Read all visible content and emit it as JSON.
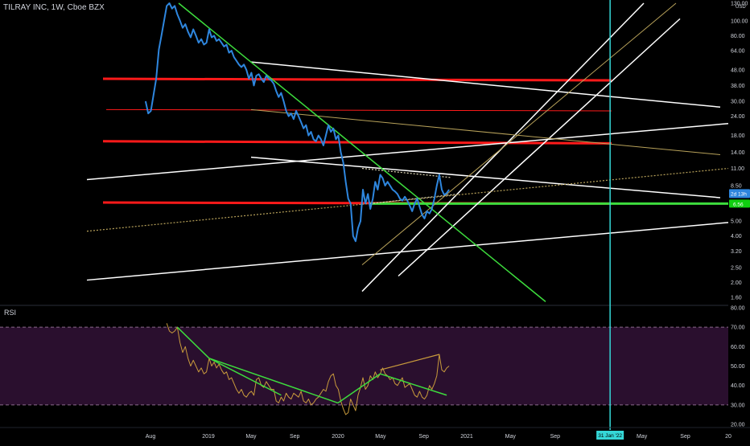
{
  "header": {
    "symbol_title": "TILRAY INC, 1W, Cboe BZX"
  },
  "rsi_panel": {
    "title": "RSI"
  },
  "colors": {
    "background": "#000000",
    "price_line": "#2e86de",
    "rsi_line": "#c89a3c",
    "rsi_band": "#2a0f2e",
    "red_level": "#ff1a1a",
    "green_trend": "#3ddc3d",
    "white_trend": "#ffffff",
    "dotted_trend": "#b8a25a",
    "cyan_marker": "#35d7d7",
    "current_price_badge": "#2e86de",
    "green_level_badge": "#10d010",
    "axis_text": "#d1d4dc",
    "dashed_level": "#8a6a8a"
  },
  "chart_data": [
    {
      "type": "line",
      "name": "price",
      "scale": "log",
      "y_ticks": [
        "130.00",
        "100.00",
        "80.00",
        "64.00",
        "48.00",
        "38.00",
        "30.00",
        "24.00",
        "18.00",
        "14.00",
        "11.00",
        "8.50",
        "5.00",
        "4.00",
        "3.20",
        "2.50",
        "2.00",
        "1.60"
      ],
      "y_unit": "USD",
      "ylim": [
        1.5,
        130
      ],
      "x_ticks": [
        "Aug",
        "2019",
        "May",
        "Sep",
        "2020",
        "May",
        "Sep",
        "2021",
        "May",
        "Sep",
        "31 Jan '22",
        "May",
        "Sep",
        "20"
      ],
      "price_badge": "2d 13h",
      "green_level_badge": "6.56",
      "series": [
        {
          "name": "price",
          "values": [
            [
              "2018-07-19",
              30
            ],
            [
              "2018-07-26",
              25
            ],
            [
              "2018-08-02",
              26
            ],
            [
              "2018-08-09",
              33
            ],
            [
              "2018-08-16",
              42
            ],
            [
              "2018-08-23",
              65
            ],
            [
              "2018-08-30",
              80
            ],
            [
              "2018-09-06",
              100
            ],
            [
              "2018-09-13",
              125
            ],
            [
              "2018-09-20",
              130
            ],
            [
              "2018-09-27",
              120
            ],
            [
              "2018-10-04",
              125
            ],
            [
              "2018-10-11",
              110
            ],
            [
              "2018-10-18",
              100
            ],
            [
              "2018-10-25",
              90
            ],
            [
              "2018-11-01",
              95
            ],
            [
              "2018-11-08",
              85
            ],
            [
              "2018-11-15",
              78
            ],
            [
              "2018-11-22",
              88
            ],
            [
              "2018-11-29",
              80
            ],
            [
              "2018-12-06",
              72
            ],
            [
              "2018-12-13",
              76
            ],
            [
              "2018-12-20",
              70
            ],
            [
              "2018-12-27",
              72
            ],
            [
              "2019-01-03",
              88
            ],
            [
              "2019-01-10",
              78
            ],
            [
              "2019-01-17",
              80
            ],
            [
              "2019-01-24",
              74
            ],
            [
              "2019-01-31",
              76
            ],
            [
              "2019-02-07",
              72
            ],
            [
              "2019-02-14",
              68
            ],
            [
              "2019-02-21",
              70
            ],
            [
              "2019-02-28",
              62
            ],
            [
              "2019-03-07",
              64
            ],
            [
              "2019-03-14",
              58
            ],
            [
              "2019-03-21",
              55
            ],
            [
              "2019-03-28",
              52
            ],
            [
              "2019-04-04",
              50
            ],
            [
              "2019-04-11",
              52
            ],
            [
              "2019-04-18",
              48
            ],
            [
              "2019-04-25",
              42
            ],
            [
              "2019-05-02",
              46
            ],
            [
              "2019-05-09",
              38
            ],
            [
              "2019-05-16",
              44
            ],
            [
              "2019-05-23",
              45
            ],
            [
              "2019-05-30",
              42
            ],
            [
              "2019-06-06",
              40
            ],
            [
              "2019-06-13",
              44
            ],
            [
              "2019-06-20",
              42
            ],
            [
              "2019-06-27",
              41
            ],
            [
              "2019-07-04",
              39
            ],
            [
              "2019-07-11",
              35
            ],
            [
              "2019-07-18",
              32
            ],
            [
              "2019-07-25",
              34
            ],
            [
              "2019-08-01",
              30
            ],
            [
              "2019-08-08",
              26
            ],
            [
              "2019-08-15",
              24
            ],
            [
              "2019-08-22",
              25
            ],
            [
              "2019-08-29",
              23
            ],
            [
              "2019-09-05",
              26
            ],
            [
              "2019-09-12",
              24
            ],
            [
              "2019-09-19",
              22
            ],
            [
              "2019-09-26",
              20
            ],
            [
              "2019-10-03",
              21
            ],
            [
              "2019-10-10",
              18
            ],
            [
              "2019-10-17",
              19
            ],
            [
              "2019-10-24",
              17
            ],
            [
              "2019-10-31",
              16.5
            ],
            [
              "2019-11-07",
              18
            ],
            [
              "2019-11-14",
              17
            ],
            [
              "2019-11-21",
              15.5
            ],
            [
              "2019-12-05",
              21
            ],
            [
              "2019-12-12",
              19
            ],
            [
              "2019-12-19",
              20
            ],
            [
              "2019-12-26",
              17
            ],
            [
              "2020-01-02",
              18
            ],
            [
              "2020-01-09",
              14
            ],
            [
              "2020-01-16",
              12
            ],
            [
              "2020-01-23",
              9
            ],
            [
              "2020-01-30",
              7
            ],
            [
              "2020-02-06",
              6.5
            ],
            [
              "2020-02-13",
              4
            ],
            [
              "2020-02-20",
              3.7
            ],
            [
              "2020-02-27",
              4.5
            ],
            [
              "2020-03-05",
              5
            ],
            [
              "2020-03-12",
              8
            ],
            [
              "2020-03-19",
              6.5
            ],
            [
              "2020-03-26",
              7.5
            ],
            [
              "2020-04-02",
              6
            ],
            [
              "2020-04-09",
              7
            ],
            [
              "2020-04-16",
              9
            ],
            [
              "2020-04-23",
              8
            ],
            [
              "2020-04-30",
              10
            ],
            [
              "2020-05-07",
              9.5
            ],
            [
              "2020-05-14",
              8.5
            ],
            [
              "2020-05-21",
              9
            ],
            [
              "2020-05-28",
              8.5
            ],
            [
              "2020-06-04",
              8
            ],
            [
              "2020-06-11",
              7.8
            ],
            [
              "2020-06-18",
              7.5
            ],
            [
              "2020-06-25",
              7
            ],
            [
              "2020-07-02",
              6.8
            ],
            [
              "2020-07-09",
              7.2
            ],
            [
              "2020-07-16",
              6.8
            ],
            [
              "2020-07-23",
              6.3
            ],
            [
              "2020-07-30",
              5.8
            ],
            [
              "2020-08-06",
              6.5
            ],
            [
              "2020-08-13",
              7
            ],
            [
              "2020-08-20",
              6.2
            ],
            [
              "2020-08-27",
              5.5
            ],
            [
              "2020-09-03",
              5.2
            ],
            [
              "2020-09-10",
              5.8
            ],
            [
              "2020-09-17",
              5.6
            ],
            [
              "2020-09-24",
              6
            ],
            [
              "2020-10-01",
              7
            ],
            [
              "2020-10-08",
              8.5
            ],
            [
              "2020-10-15",
              10
            ],
            [
              "2020-10-22",
              8
            ],
            [
              "2020-10-29",
              7.4
            ],
            [
              "2020-11-05",
              7.6
            ],
            [
              "2020-11-12",
              8
            ]
          ]
        }
      ]
    },
    {
      "type": "line",
      "name": "RSI",
      "title": "RSI",
      "ylim": [
        20,
        80
      ],
      "y_ticks": [
        "80.00",
        "70.00",
        "60.00",
        "50.00",
        "40.00",
        "30.00",
        "20.00"
      ],
      "bands": [
        30,
        70
      ],
      "series": [
        {
          "name": "RSI",
          "values": [
            [
              "2018-09-13",
              72
            ],
            [
              "2018-09-20",
              68
            ],
            [
              "2018-09-27",
              67
            ],
            [
              "2018-10-04",
              68
            ],
            [
              "2018-10-11",
              70
            ],
            [
              "2018-10-18",
              62
            ],
            [
              "2018-10-25",
              57
            ],
            [
              "2018-11-01",
              60
            ],
            [
              "2018-11-08",
              54
            ],
            [
              "2018-11-15",
              50
            ],
            [
              "2018-11-22",
              53
            ],
            [
              "2018-11-29",
              50
            ],
            [
              "2018-12-06",
              47
            ],
            [
              "2018-12-13",
              49
            ],
            [
              "2018-12-20",
              46
            ],
            [
              "2018-12-27",
              47
            ],
            [
              "2019-01-03",
              54
            ],
            [
              "2019-01-10",
              50
            ],
            [
              "2019-01-17",
              52
            ],
            [
              "2019-01-24",
              49
            ],
            [
              "2019-01-31",
              51
            ],
            [
              "2019-02-07",
              48
            ],
            [
              "2019-02-14",
              46
            ],
            [
              "2019-02-21",
              47
            ],
            [
              "2019-02-28",
              43
            ],
            [
              "2019-03-07",
              44
            ],
            [
              "2019-03-14",
              41
            ],
            [
              "2019-03-21",
              38
            ],
            [
              "2019-03-28",
              36
            ],
            [
              "2019-04-04",
              38
            ],
            [
              "2019-04-11",
              35
            ],
            [
              "2019-04-18",
              34
            ],
            [
              "2019-04-25",
              36
            ],
            [
              "2019-05-02",
              37
            ],
            [
              "2019-05-09",
              35
            ],
            [
              "2019-05-16",
              43
            ],
            [
              "2019-05-23",
              44
            ],
            [
              "2019-05-30",
              40
            ],
            [
              "2019-06-06",
              39
            ],
            [
              "2019-06-13",
              42
            ],
            [
              "2019-06-20",
              40
            ],
            [
              "2019-06-27",
              38
            ],
            [
              "2019-07-04",
              38
            ],
            [
              "2019-07-11",
              32
            ],
            [
              "2019-07-18",
              31
            ],
            [
              "2019-07-25",
              34
            ],
            [
              "2019-08-01",
              32
            ],
            [
              "2019-08-08",
              36
            ],
            [
              "2019-08-15",
              34
            ],
            [
              "2019-08-22",
              33
            ],
            [
              "2019-08-29",
              36
            ],
            [
              "2019-09-05",
              35
            ],
            [
              "2019-09-12",
              34
            ],
            [
              "2019-09-19",
              37
            ],
            [
              "2019-09-26",
              32
            ],
            [
              "2019-10-03",
              31
            ],
            [
              "2019-10-10",
              33
            ],
            [
              "2019-10-17",
              30
            ],
            [
              "2019-10-24",
              31
            ],
            [
              "2019-10-31",
              33
            ],
            [
              "2019-11-07",
              34
            ],
            [
              "2019-11-14",
              36
            ],
            [
              "2019-11-21",
              38
            ],
            [
              "2019-11-28",
              37
            ],
            [
              "2019-12-05",
              42
            ],
            [
              "2019-12-12",
              45
            ],
            [
              "2019-12-19",
              46
            ],
            [
              "2019-12-26",
              40
            ],
            [
              "2020-01-02",
              38
            ],
            [
              "2020-01-09",
              32
            ],
            [
              "2020-01-16",
              28
            ],
            [
              "2020-01-23",
              25
            ],
            [
              "2020-01-30",
              26
            ],
            [
              "2020-02-06",
              33
            ],
            [
              "2020-02-13",
              30
            ],
            [
              "2020-02-20",
              27
            ],
            [
              "2020-02-27",
              35
            ],
            [
              "2020-03-05",
              39
            ],
            [
              "2020-03-12",
              44
            ],
            [
              "2020-03-19",
              38
            ],
            [
              "2020-03-26",
              40
            ],
            [
              "2020-04-02",
              45
            ],
            [
              "2020-04-09",
              43
            ],
            [
              "2020-04-16",
              47
            ],
            [
              "2020-04-23",
              44
            ],
            [
              "2020-04-30",
              46
            ],
            [
              "2020-05-07",
              49
            ],
            [
              "2020-05-14",
              46
            ],
            [
              "2020-05-21",
              45
            ],
            [
              "2020-05-28",
              43
            ],
            [
              "2020-06-04",
              44
            ],
            [
              "2020-06-11",
              41
            ],
            [
              "2020-06-18",
              40
            ],
            [
              "2020-06-25",
              42
            ],
            [
              "2020-07-02",
              44
            ],
            [
              "2020-07-09",
              39
            ],
            [
              "2020-07-16",
              40
            ],
            [
              "2020-07-23",
              41
            ],
            [
              "2020-07-30",
              38
            ],
            [
              "2020-08-06",
              35
            ],
            [
              "2020-08-13",
              34
            ],
            [
              "2020-08-20",
              37
            ],
            [
              "2020-08-27",
              34
            ],
            [
              "2020-09-03",
              33
            ],
            [
              "2020-09-10",
              35
            ],
            [
              "2020-09-17",
              40
            ],
            [
              "2020-09-24",
              38
            ],
            [
              "2020-10-01",
              41
            ],
            [
              "2020-10-08",
              45
            ],
            [
              "2020-10-15",
              56
            ],
            [
              "2020-10-22",
              48
            ],
            [
              "2020-10-29",
              47
            ],
            [
              "2020-11-05",
              49
            ],
            [
              "2020-11-12",
              50
            ]
          ]
        }
      ]
    }
  ]
}
